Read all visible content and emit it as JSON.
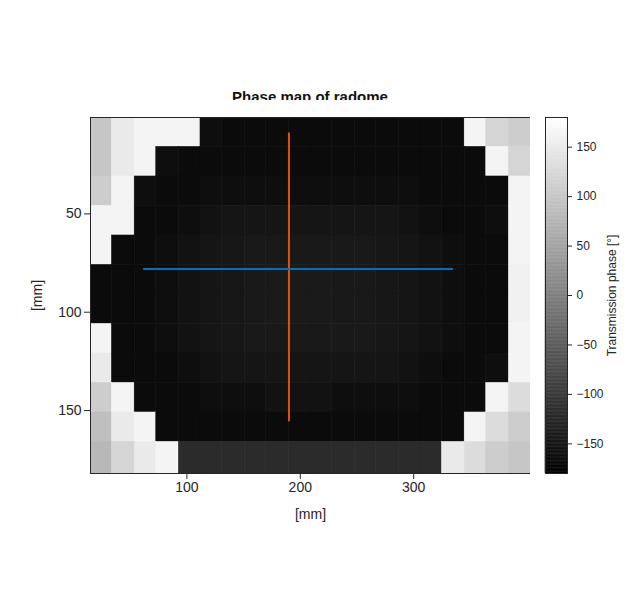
{
  "chart_data": {
    "type": "heatmap",
    "title": "Phase map of radome",
    "x_label": "[mm]",
    "y_label": "[mm]",
    "xlim": [
      15,
      403
    ],
    "ylim": [
      1,
      182
    ],
    "xticks": [
      100,
      200,
      300
    ],
    "yticks": [
      50,
      100,
      150
    ],
    "x_edges": [
      15,
      34,
      54,
      73,
      93,
      112,
      131,
      151,
      170,
      190,
      209,
      228,
      248,
      267,
      287,
      306,
      325,
      345,
      364,
      384,
      403
    ],
    "y_edges": [
      1,
      16,
      31,
      46,
      61,
      76,
      91,
      106,
      121,
      136,
      151,
      166,
      182
    ],
    "cells": [
      [
        100,
        150,
        165,
        165,
        165,
        -160,
        -165,
        -165,
        -165,
        -165,
        -165,
        -165,
        -165,
        -165,
        -165,
        -165,
        -165,
        165,
        120,
        110
      ],
      [
        100,
        150,
        165,
        -160,
        -165,
        -165,
        -165,
        -165,
        -165,
        -165,
        -165,
        -165,
        -165,
        -165,
        -165,
        -165,
        -165,
        -165,
        165,
        120
      ],
      [
        110,
        165,
        -160,
        -165,
        -165,
        -160,
        -160,
        -160,
        -160,
        -160,
        -160,
        -160,
        -160,
        -160,
        -160,
        -165,
        -165,
        -165,
        -165,
        165
      ],
      [
        165,
        165,
        -165,
        -165,
        -160,
        -155,
        -150,
        -150,
        -150,
        -150,
        -150,
        -150,
        -150,
        -150,
        -155,
        -160,
        -165,
        -165,
        -160,
        165
      ],
      [
        165,
        -165,
        -165,
        -160,
        -155,
        -150,
        -148,
        -145,
        -145,
        -145,
        -145,
        -145,
        -145,
        -148,
        -150,
        -155,
        -160,
        -165,
        -165,
        165
      ],
      [
        -165,
        -165,
        -165,
        -160,
        -155,
        -150,
        -148,
        -145,
        -143,
        -143,
        -143,
        -145,
        -145,
        -148,
        -150,
        -155,
        -160,
        -165,
        -165,
        160
      ],
      [
        -165,
        -165,
        -165,
        -160,
        -155,
        -150,
        -148,
        -145,
        -143,
        -143,
        -143,
        -145,
        -145,
        -148,
        -150,
        -155,
        -160,
        -165,
        -165,
        160
      ],
      [
        165,
        -165,
        -165,
        -160,
        -155,
        -150,
        -148,
        -145,
        -145,
        -145,
        -145,
        -145,
        -145,
        -148,
        -150,
        -155,
        -160,
        -165,
        -165,
        165
      ],
      [
        150,
        -165,
        -165,
        -165,
        -160,
        -155,
        -150,
        -150,
        -150,
        -150,
        -150,
        -150,
        -150,
        -150,
        -155,
        -160,
        -165,
        -165,
        -160,
        165
      ],
      [
        110,
        165,
        -165,
        -165,
        -165,
        -160,
        -160,
        -160,
        -155,
        -155,
        -155,
        -160,
        -160,
        -160,
        -160,
        -165,
        -165,
        -165,
        165,
        130
      ],
      [
        90,
        150,
        165,
        -165,
        -165,
        -165,
        -165,
        -165,
        -165,
        -165,
        -165,
        -165,
        -165,
        -165,
        -165,
        -165,
        -165,
        165,
        130,
        110
      ],
      [
        80,
        120,
        150,
        165,
        -120,
        -120,
        -120,
        -120,
        -120,
        -120,
        -120,
        -120,
        -120,
        -120,
        -120,
        -120,
        150,
        130,
        110,
        100
      ]
    ],
    "colorbar": {
      "label": "Transmission phase [°]",
      "range": [
        -180,
        180
      ],
      "ticks": [
        -150,
        -100,
        -50,
        0,
        50,
        100,
        150
      ]
    },
    "lines": [
      {
        "color": "#D95319",
        "x": [
          190,
          190
        ],
        "y": [
          9,
          155
        ]
      },
      {
        "color": "#0072BD",
        "x": [
          62,
          334
        ],
        "y": [
          78,
          78
        ]
      }
    ]
  }
}
